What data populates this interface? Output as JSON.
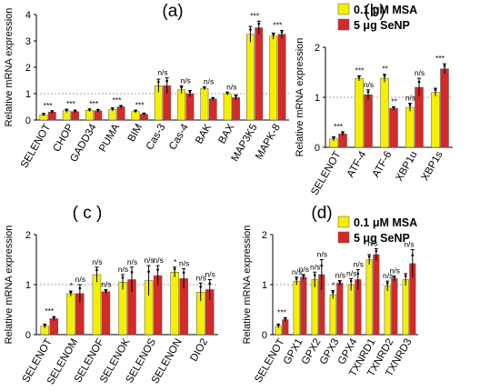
{
  "colors": {
    "series1": "#f5f000",
    "series2": "#d42a2a",
    "refline": "#888888"
  },
  "legends": [
    {
      "panel": "b",
      "entries": [
        "0.1 μM MSA",
        "5 μg SeNP"
      ]
    },
    {
      "panel": "d",
      "entries": [
        "0.1 μM MSA",
        "5 μg SeNP"
      ]
    }
  ],
  "chart_data": [
    {
      "panel_label": "(a)",
      "type": "bar",
      "ylabel": "Relative mRNA expression",
      "ylim": [
        0,
        4
      ],
      "yticks": [
        "0",
        "1",
        "2",
        "3",
        "4"
      ],
      "reference_line": 1,
      "categories": [
        "SELENOT",
        "CHOP",
        "GADD34",
        "PUMA",
        "BIM",
        "Cas-3",
        "Cas-4",
        "BAK",
        "BAX",
        "MAP3K5",
        "MAPK-8"
      ],
      "series": [
        {
          "name": "0.1 μM MSA",
          "values": [
            0.2,
            0.35,
            0.37,
            0.4,
            0.32,
            1.3,
            1.15,
            1.2,
            1.0,
            3.25,
            3.18
          ],
          "errors": [
            0.05,
            0.06,
            0.05,
            0.06,
            0.05,
            0.25,
            0.15,
            0.06,
            0.06,
            0.3,
            0.12
          ]
        },
        {
          "name": "5 μg SeNP",
          "values": [
            0.3,
            0.32,
            0.35,
            0.5,
            0.22,
            1.3,
            1.0,
            0.8,
            0.85,
            3.5,
            3.25
          ],
          "errors": [
            0.05,
            0.05,
            0.05,
            0.05,
            0.04,
            0.3,
            0.12,
            0.05,
            0.1,
            0.25,
            0.15
          ]
        }
      ],
      "annotations": [
        "***",
        "***",
        "***",
        "***",
        "***",
        "n/s",
        "n/s",
        "n/s",
        "n/s",
        "***",
        "***"
      ]
    },
    {
      "panel_label": "(b)",
      "type": "bar",
      "ylabel": "Relative mRNA expression",
      "ylim": [
        0,
        2
      ],
      "yticks": [
        "0",
        "1",
        "2"
      ],
      "reference_line": 1,
      "categories": [
        "SELENOT",
        "ATF-4",
        "ATF-6",
        "XBP1u",
        "XBP1s"
      ],
      "series": [
        {
          "name": "0.1 μM MSA",
          "values": [
            0.17,
            1.38,
            1.38,
            0.8,
            1.1
          ],
          "errors": [
            0.04,
            0.05,
            0.08,
            0.08,
            0.08
          ]
        },
        {
          "name": "5 μg SeNP",
          "values": [
            0.27,
            1.05,
            0.78,
            1.2,
            1.57
          ],
          "errors": [
            0.04,
            0.1,
            0.03,
            0.18,
            0.1
          ]
        }
      ],
      "annotations": [
        "***",
        "***",
        "**",
        "n/s",
        "***"
      ],
      "annotations2": [
        "",
        "n/s",
        "**",
        "n/s",
        ""
      ]
    },
    {
      "panel_label": "( c )",
      "type": "bar",
      "ylabel": "Relative mRNA expression",
      "ylim": [
        0,
        2
      ],
      "yticks": [
        "0",
        "1",
        "2"
      ],
      "reference_line": 1,
      "categories": [
        "SELENOT",
        "SELENOM",
        "SELENOF",
        "SELENOK",
        "SELENOS",
        "SELENON",
        "DIO2"
      ],
      "series": [
        {
          "name": "0.1 μM MSA",
          "values": [
            0.17,
            0.82,
            1.2,
            1.05,
            1.08,
            1.25,
            0.85
          ],
          "errors": [
            0.04,
            0.05,
            0.15,
            0.15,
            0.3,
            0.1,
            0.18
          ]
        },
        {
          "name": "5 μg SeNP",
          "values": [
            0.32,
            0.82,
            0.86,
            1.1,
            1.18,
            1.12,
            0.9
          ],
          "errors": [
            0.04,
            0.18,
            0.04,
            0.25,
            0.2,
            0.2,
            0.2
          ]
        }
      ],
      "annotations": [
        "***",
        "*",
        "n/s",
        "n/s",
        "n/s",
        "*",
        "n/s"
      ],
      "annotations2": [
        "",
        "n/s",
        "n/s",
        "n/s",
        "n/s",
        "n/s",
        "n/s"
      ]
    },
    {
      "panel_label": "(d)",
      "type": "bar",
      "ylabel": "Relative mRNA expression",
      "ylim": [
        0,
        2
      ],
      "yticks": [
        "0",
        "1",
        "2"
      ],
      "reference_line": 1,
      "categories": [
        "SELENOT",
        "GPX1",
        "GPX2",
        "GPX3",
        "GPX4",
        "TXNRD1",
        "TXNRD2",
        "TXNRD3"
      ],
      "series": [
        {
          "name": "0.1 μM MSA",
          "values": [
            0.17,
            1.07,
            1.1,
            0.8,
            1.0,
            1.5,
            0.97,
            1.1
          ],
          "errors": [
            0.04,
            0.08,
            0.15,
            0.08,
            0.12,
            0.1,
            0.1,
            0.12
          ]
        },
        {
          "name": "5 μg SeNP",
          "values": [
            0.3,
            1.15,
            1.2,
            1.03,
            1.1,
            1.6,
            1.12,
            1.42
          ],
          "errors": [
            0.04,
            0.05,
            0.3,
            0.05,
            0.2,
            0.12,
            0.05,
            0.28
          ]
        }
      ],
      "annotations": [
        "***",
        "n/s",
        "n/s",
        "*",
        "n/s",
        "n/s",
        "n/s",
        "n/s"
      ],
      "annotations2": [
        "",
        "n/s",
        "n/s",
        "n/s",
        "n/s",
        "",
        "n/s",
        ""
      ]
    }
  ]
}
